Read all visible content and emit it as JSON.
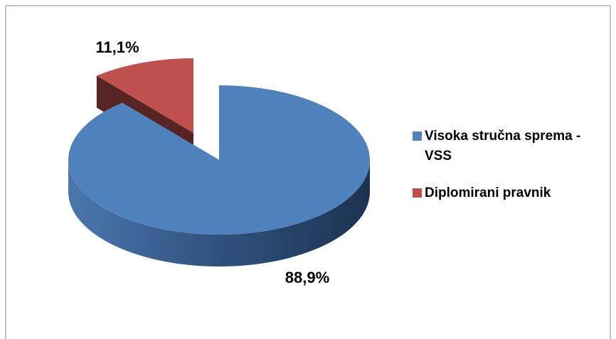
{
  "chart_data": {
    "type": "pie",
    "categories": [
      "Visoka stručna sprema - VSS",
      "Diplomirani pravnik"
    ],
    "values": [
      88.9,
      11.1
    ],
    "value_labels": [
      "88,9%",
      "11,1%"
    ],
    "colors": [
      "#4f81bd",
      "#c0504d"
    ],
    "legend": "right"
  }
}
